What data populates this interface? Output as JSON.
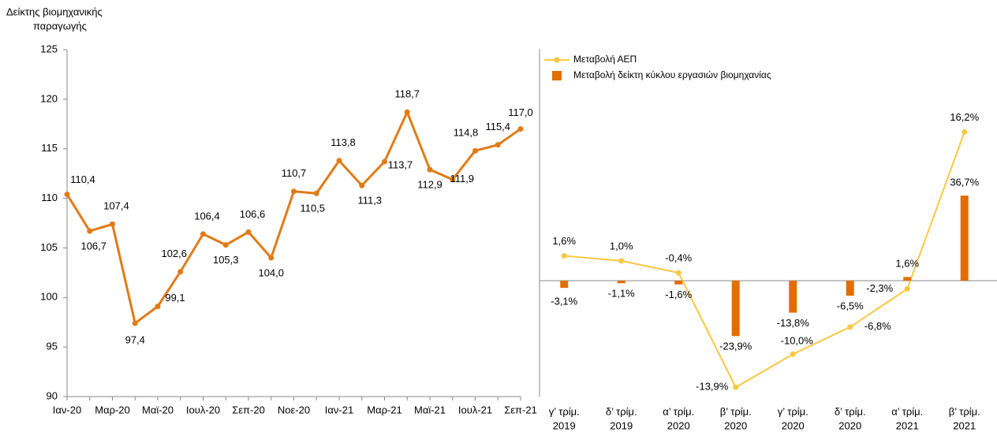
{
  "chart_data": [
    {
      "type": "line",
      "y_label": [
        "Δείκτης βιομηχανικής",
        "παραγωγής"
      ],
      "categories": [
        "Ιαν-20",
        null,
        "Μαρ-20",
        null,
        "Μαϊ-20",
        null,
        "Ιουλ-20",
        null,
        "Σεπ-20",
        null,
        "Νοε-20",
        null,
        "Ιαν-21",
        null,
        "Μαρ-21",
        null,
        "Μαϊ-21",
        null,
        "Ιουλ-21",
        null,
        "Σεπ-21"
      ],
      "series": [
        {
          "name": null,
          "color": "#e07b16",
          "values": [
            110.4,
            106.7,
            107.4,
            97.4,
            99.1,
            102.6,
            106.4,
            105.3,
            106.6,
            104.0,
            110.7,
            110.5,
            113.8,
            111.3,
            113.7,
            118.7,
            112.9,
            111.9,
            114.8,
            115.4,
            117.0
          ],
          "value_labels": [
            "110,4",
            "106,7",
            "107,4",
            "97,4",
            "99,1",
            "102,6",
            "106,4",
            "105,3",
            "106,6",
            "104,0",
            "110,7",
            "110,5",
            "113,8",
            "111,3",
            "113,7",
            "118,7",
            "112,9",
            "111,9",
            "114,8",
            "115,4",
            "117,0"
          ]
        }
      ],
      "ylim": [
        90,
        125
      ],
      "yticks": [
        90,
        95,
        100,
        105,
        110,
        115,
        120,
        125
      ]
    },
    {
      "type": "combo",
      "categories": [
        [
          "γ’ τρίμ.",
          "2019"
        ],
        [
          "δ’ τρίμ.",
          "2019"
        ],
        [
          "α’ τρίμ.",
          "2020"
        ],
        [
          "β’ τρίμ.",
          "2020"
        ],
        [
          "γ’ τρίμ.",
          "2020"
        ],
        [
          "δ’ τρίμ.",
          "2020"
        ],
        [
          "α’ τρίμ.",
          "2021"
        ],
        [
          "β’ τρίμ.",
          "2021"
        ]
      ],
      "series": [
        {
          "name": "Μεταβολή ΑΕΠ",
          "type": "line",
          "axis": "y2",
          "color": "#fcc841",
          "values": [
            1.6,
            1.0,
            -0.4,
            -13.9,
            -10.0,
            -6.8,
            -2.3,
            16.2
          ],
          "value_labels": [
            "1,6%",
            "1,0%",
            "-0,4%",
            "-13,9%",
            "-10,0%",
            "-6,8%",
            "-2,3%",
            "16,2%"
          ]
        },
        {
          "name": "Μεταβολή δείκτη κύκλου εργασιών βιομηχανίας",
          "type": "bar",
          "color": "#e06f00",
          "values": [
            -3.1,
            -1.1,
            -1.6,
            -23.9,
            -13.8,
            -6.5,
            1.6,
            36.7
          ],
          "value_labels": [
            "-3,1%",
            "-1,1%",
            "-1,6%",
            "-23,9%",
            "-13,8%",
            "-6,5%",
            "1,6%",
            "36,7%"
          ]
        }
      ],
      "ylim": [
        -50,
        100
      ],
      "y2lim": [
        -15,
        26
      ],
      "legend": "upper left"
    }
  ]
}
